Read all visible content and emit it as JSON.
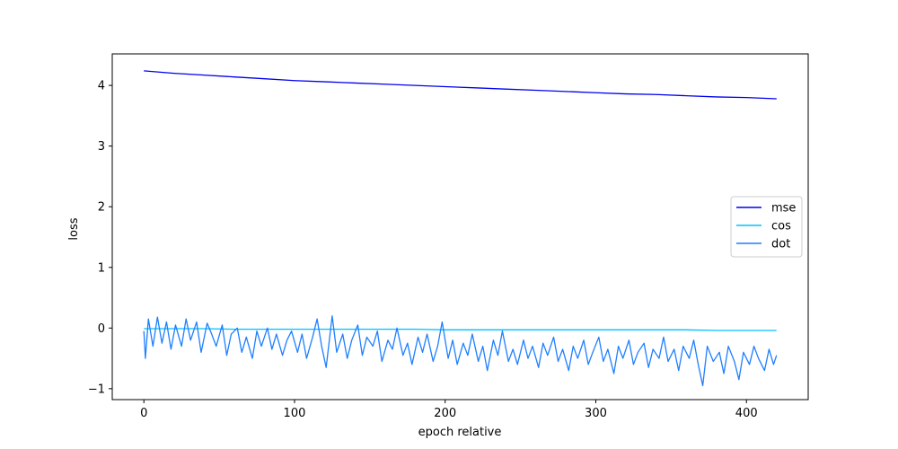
{
  "chart_data": {
    "type": "line",
    "title": "",
    "xlabel": "epoch relative",
    "ylabel": "loss",
    "xlim": [
      -21,
      441
    ],
    "ylim": [
      -1.18,
      4.52
    ],
    "xticks": [
      0,
      100,
      200,
      300,
      400
    ],
    "yticks": [
      -1,
      0,
      1,
      2,
      3,
      4
    ],
    "grid": false,
    "legend": "center-right",
    "series": [
      {
        "name": "mse",
        "color": "#0000ee",
        "x": [
          0,
          20,
          40,
          60,
          80,
          100,
          120,
          140,
          160,
          180,
          200,
          220,
          240,
          260,
          280,
          300,
          320,
          340,
          360,
          380,
          400,
          420
        ],
        "values": [
          4.24,
          4.2,
          4.17,
          4.14,
          4.11,
          4.08,
          4.06,
          4.04,
          4.02,
          4.0,
          3.98,
          3.96,
          3.94,
          3.92,
          3.9,
          3.88,
          3.86,
          3.85,
          3.83,
          3.81,
          3.8,
          3.78
        ]
      },
      {
        "name": "cos",
        "color": "#00bfff",
        "x": [
          0,
          20,
          40,
          60,
          80,
          100,
          120,
          140,
          160,
          180,
          200,
          220,
          240,
          260,
          280,
          300,
          320,
          340,
          360,
          380,
          400,
          420
        ],
        "values": [
          -0.01,
          -0.01,
          -0.01,
          -0.02,
          -0.02,
          -0.02,
          -0.02,
          -0.02,
          -0.02,
          -0.02,
          -0.03,
          -0.03,
          -0.03,
          -0.03,
          -0.03,
          -0.03,
          -0.03,
          -0.03,
          -0.03,
          -0.04,
          -0.04,
          -0.04
        ]
      },
      {
        "name": "dot",
        "color": "#1e7fff",
        "x": [
          0,
          1,
          3,
          6,
          9,
          12,
          15,
          18,
          21,
          25,
          28,
          31,
          35,
          38,
          42,
          45,
          48,
          52,
          55,
          58,
          62,
          65,
          68,
          72,
          75,
          78,
          82,
          85,
          88,
          92,
          95,
          98,
          102,
          105,
          108,
          112,
          115,
          118,
          121,
          125,
          128,
          132,
          135,
          138,
          142,
          145,
          148,
          152,
          155,
          158,
          162,
          165,
          168,
          172,
          175,
          178,
          182,
          185,
          188,
          192,
          195,
          198,
          202,
          205,
          208,
          212,
          215,
          218,
          222,
          225,
          228,
          232,
          235,
          238,
          242,
          245,
          248,
          252,
          255,
          258,
          262,
          265,
          268,
          272,
          275,
          278,
          282,
          285,
          288,
          292,
          295,
          298,
          302,
          305,
          308,
          312,
          315,
          318,
          322,
          325,
          328,
          332,
          335,
          338,
          342,
          345,
          348,
          352,
          355,
          358,
          362,
          365,
          368,
          371,
          374,
          378,
          382,
          385,
          388,
          392,
          395,
          398,
          402,
          405,
          408,
          412,
          415,
          418,
          420
        ],
        "values": [
          -0.05,
          -0.5,
          0.15,
          -0.3,
          0.18,
          -0.25,
          0.1,
          -0.35,
          0.05,
          -0.3,
          0.15,
          -0.2,
          0.1,
          -0.4,
          0.08,
          -0.1,
          -0.3,
          0.05,
          -0.45,
          -0.1,
          0.0,
          -0.4,
          -0.15,
          -0.5,
          -0.05,
          -0.3,
          0.0,
          -0.35,
          -0.1,
          -0.45,
          -0.2,
          -0.05,
          -0.4,
          -0.1,
          -0.5,
          -0.15,
          0.15,
          -0.3,
          -0.65,
          0.2,
          -0.4,
          -0.1,
          -0.5,
          -0.2,
          0.05,
          -0.45,
          -0.15,
          -0.3,
          -0.05,
          -0.55,
          -0.2,
          -0.35,
          0.0,
          -0.45,
          -0.25,
          -0.6,
          -0.15,
          -0.4,
          -0.1,
          -0.55,
          -0.3,
          0.1,
          -0.5,
          -0.2,
          -0.6,
          -0.25,
          -0.45,
          -0.1,
          -0.55,
          -0.3,
          -0.7,
          -0.2,
          -0.45,
          -0.05,
          -0.55,
          -0.35,
          -0.6,
          -0.2,
          -0.5,
          -0.3,
          -0.65,
          -0.25,
          -0.45,
          -0.15,
          -0.55,
          -0.35,
          -0.7,
          -0.3,
          -0.5,
          -0.2,
          -0.6,
          -0.4,
          -0.15,
          -0.55,
          -0.35,
          -0.75,
          -0.3,
          -0.5,
          -0.2,
          -0.6,
          -0.4,
          -0.25,
          -0.65,
          -0.35,
          -0.5,
          -0.15,
          -0.55,
          -0.35,
          -0.7,
          -0.3,
          -0.5,
          -0.2,
          -0.6,
          -0.95,
          -0.3,
          -0.55,
          -0.4,
          -0.75,
          -0.3,
          -0.55,
          -0.85,
          -0.4,
          -0.6,
          -0.3,
          -0.5,
          -0.7,
          -0.35,
          -0.6,
          -0.45
        ]
      }
    ]
  }
}
